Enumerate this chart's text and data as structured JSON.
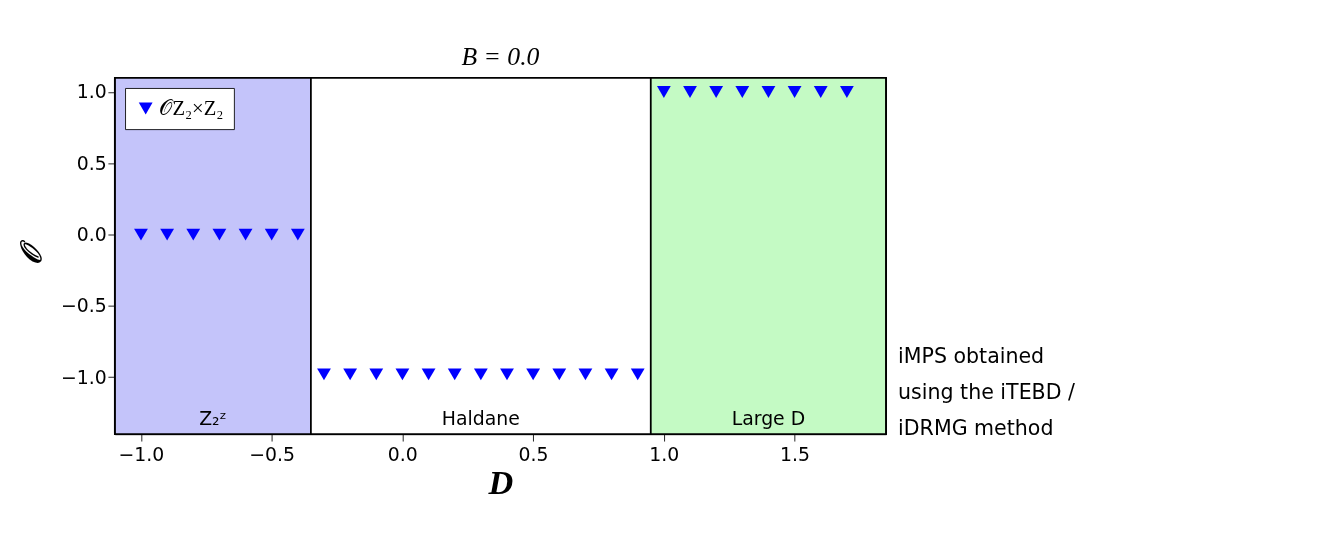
{
  "chart_data": {
    "type": "scatter",
    "title": "B = 0.0",
    "xlabel": "D",
    "ylabel": "𝒪",
    "x": [
      -1.0,
      -0.9,
      -0.8,
      -0.7,
      -0.6,
      -0.5,
      -0.4,
      -0.3,
      -0.2,
      -0.1,
      0.0,
      0.1,
      0.2,
      0.3,
      0.4,
      0.5,
      0.6,
      0.7,
      0.8,
      0.9,
      1.0,
      1.1,
      1.2,
      1.3,
      1.4,
      1.5,
      1.6,
      1.7
    ],
    "series": [
      {
        "name": "𝒪Z₂×Z₂",
        "color": "#0000ff",
        "values": [
          0.0,
          0.0,
          0.0,
          0.0,
          0.0,
          0.0,
          0.0,
          -0.98,
          -0.98,
          -0.98,
          -0.98,
          -0.98,
          -0.98,
          -0.98,
          -0.98,
          -0.98,
          -0.98,
          -0.98,
          -0.98,
          -0.98,
          1.0,
          1.0,
          1.0,
          1.0,
          1.0,
          1.0,
          1.0,
          1.0
        ]
      }
    ],
    "marker": "triangle",
    "legend": "top left",
    "xlim": [
      -1.1,
      1.85
    ],
    "xticks": [
      {
        "value": -1.0,
        "label": "−1.0"
      },
      {
        "value": -0.5,
        "label": "−0.5"
      },
      {
        "value": 0,
        "label": "0.0"
      },
      0.5,
      {
        "value": 1,
        "label": "1.0"
      },
      1.5
    ],
    "ylim": [
      -1.4,
      1.1
    ],
    "yticks": [
      {
        "value": -1.0,
        "label": "−1.0"
      },
      {
        "value": -0.5,
        "label": "−0.5"
      },
      {
        "value": 0,
        "label": "0.0"
      },
      0.5,
      {
        "value": 1,
        "label": "1.0"
      }
    ],
    "bands": [
      {
        "axis": "x",
        "from": -1.1,
        "to": -0.35,
        "label": "Z₂ᶻ",
        "color": "#c4c4fa"
      },
      {
        "axis": "x",
        "from": -0.35,
        "to": 0.95,
        "label": "Haldane",
        "color": "#ffffff"
      },
      {
        "axis": "x",
        "from": 0.95,
        "to": 1.85,
        "label": "Large D",
        "color": "#c4fac4"
      }
    ],
    "annotations": [
      "iMPS obtained\nusing the iTEBD /\niDRMG method"
    ]
  }
}
